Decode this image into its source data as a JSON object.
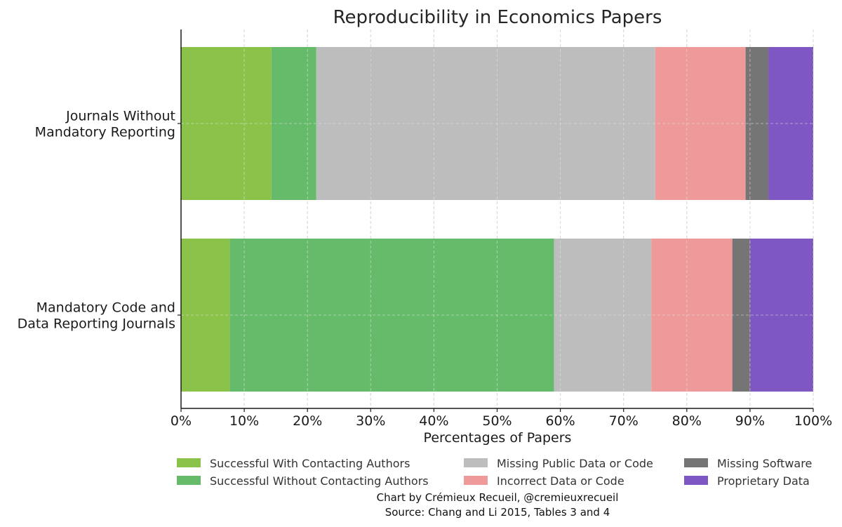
{
  "chart_data": {
    "type": "bar",
    "orientation": "horizontal",
    "stacked": true,
    "title": "Reproducibility in Economics Papers",
    "xlabel": "Percentages of Papers",
    "ylabel": "",
    "xlim": [
      0,
      100
    ],
    "x_ticks": [
      "0%",
      "10%",
      "20%",
      "30%",
      "40%",
      "50%",
      "60%",
      "70%",
      "80%",
      "90%",
      "100%"
    ],
    "grid": true,
    "legend_position": "bottom",
    "categories": [
      [
        "Journals Without",
        "Mandatory Reporting"
      ],
      [
        "Mandatory Code and",
        "Data Reporting Journals"
      ]
    ],
    "series": [
      {
        "name": "Successful With Contacting Authors",
        "color": "#8bc34a",
        "values": [
          14.3,
          7.7
        ]
      },
      {
        "name": "Successful Without Contacting Authors",
        "color": "#66bb6a",
        "values": [
          7.1,
          51.3
        ]
      },
      {
        "name": "Missing Public Data or Code",
        "color": "#bdbdbd",
        "values": [
          53.6,
          15.4
        ]
      },
      {
        "name": "Incorrect Data or Code",
        "color": "#ef9a9a",
        "values": [
          14.3,
          12.8
        ]
      },
      {
        "name": "Missing Software",
        "color": "#757575",
        "values": [
          3.6,
          2.8
        ]
      },
      {
        "name": "Proprietary Data",
        "color": "#7e57c2",
        "values": [
          7.1,
          10.0
        ]
      }
    ],
    "credits": [
      "Chart by Crémieux Recueil, @cremieuxrecueil",
      "Source: Chang and Li 2015, Tables 3 and 4"
    ]
  }
}
